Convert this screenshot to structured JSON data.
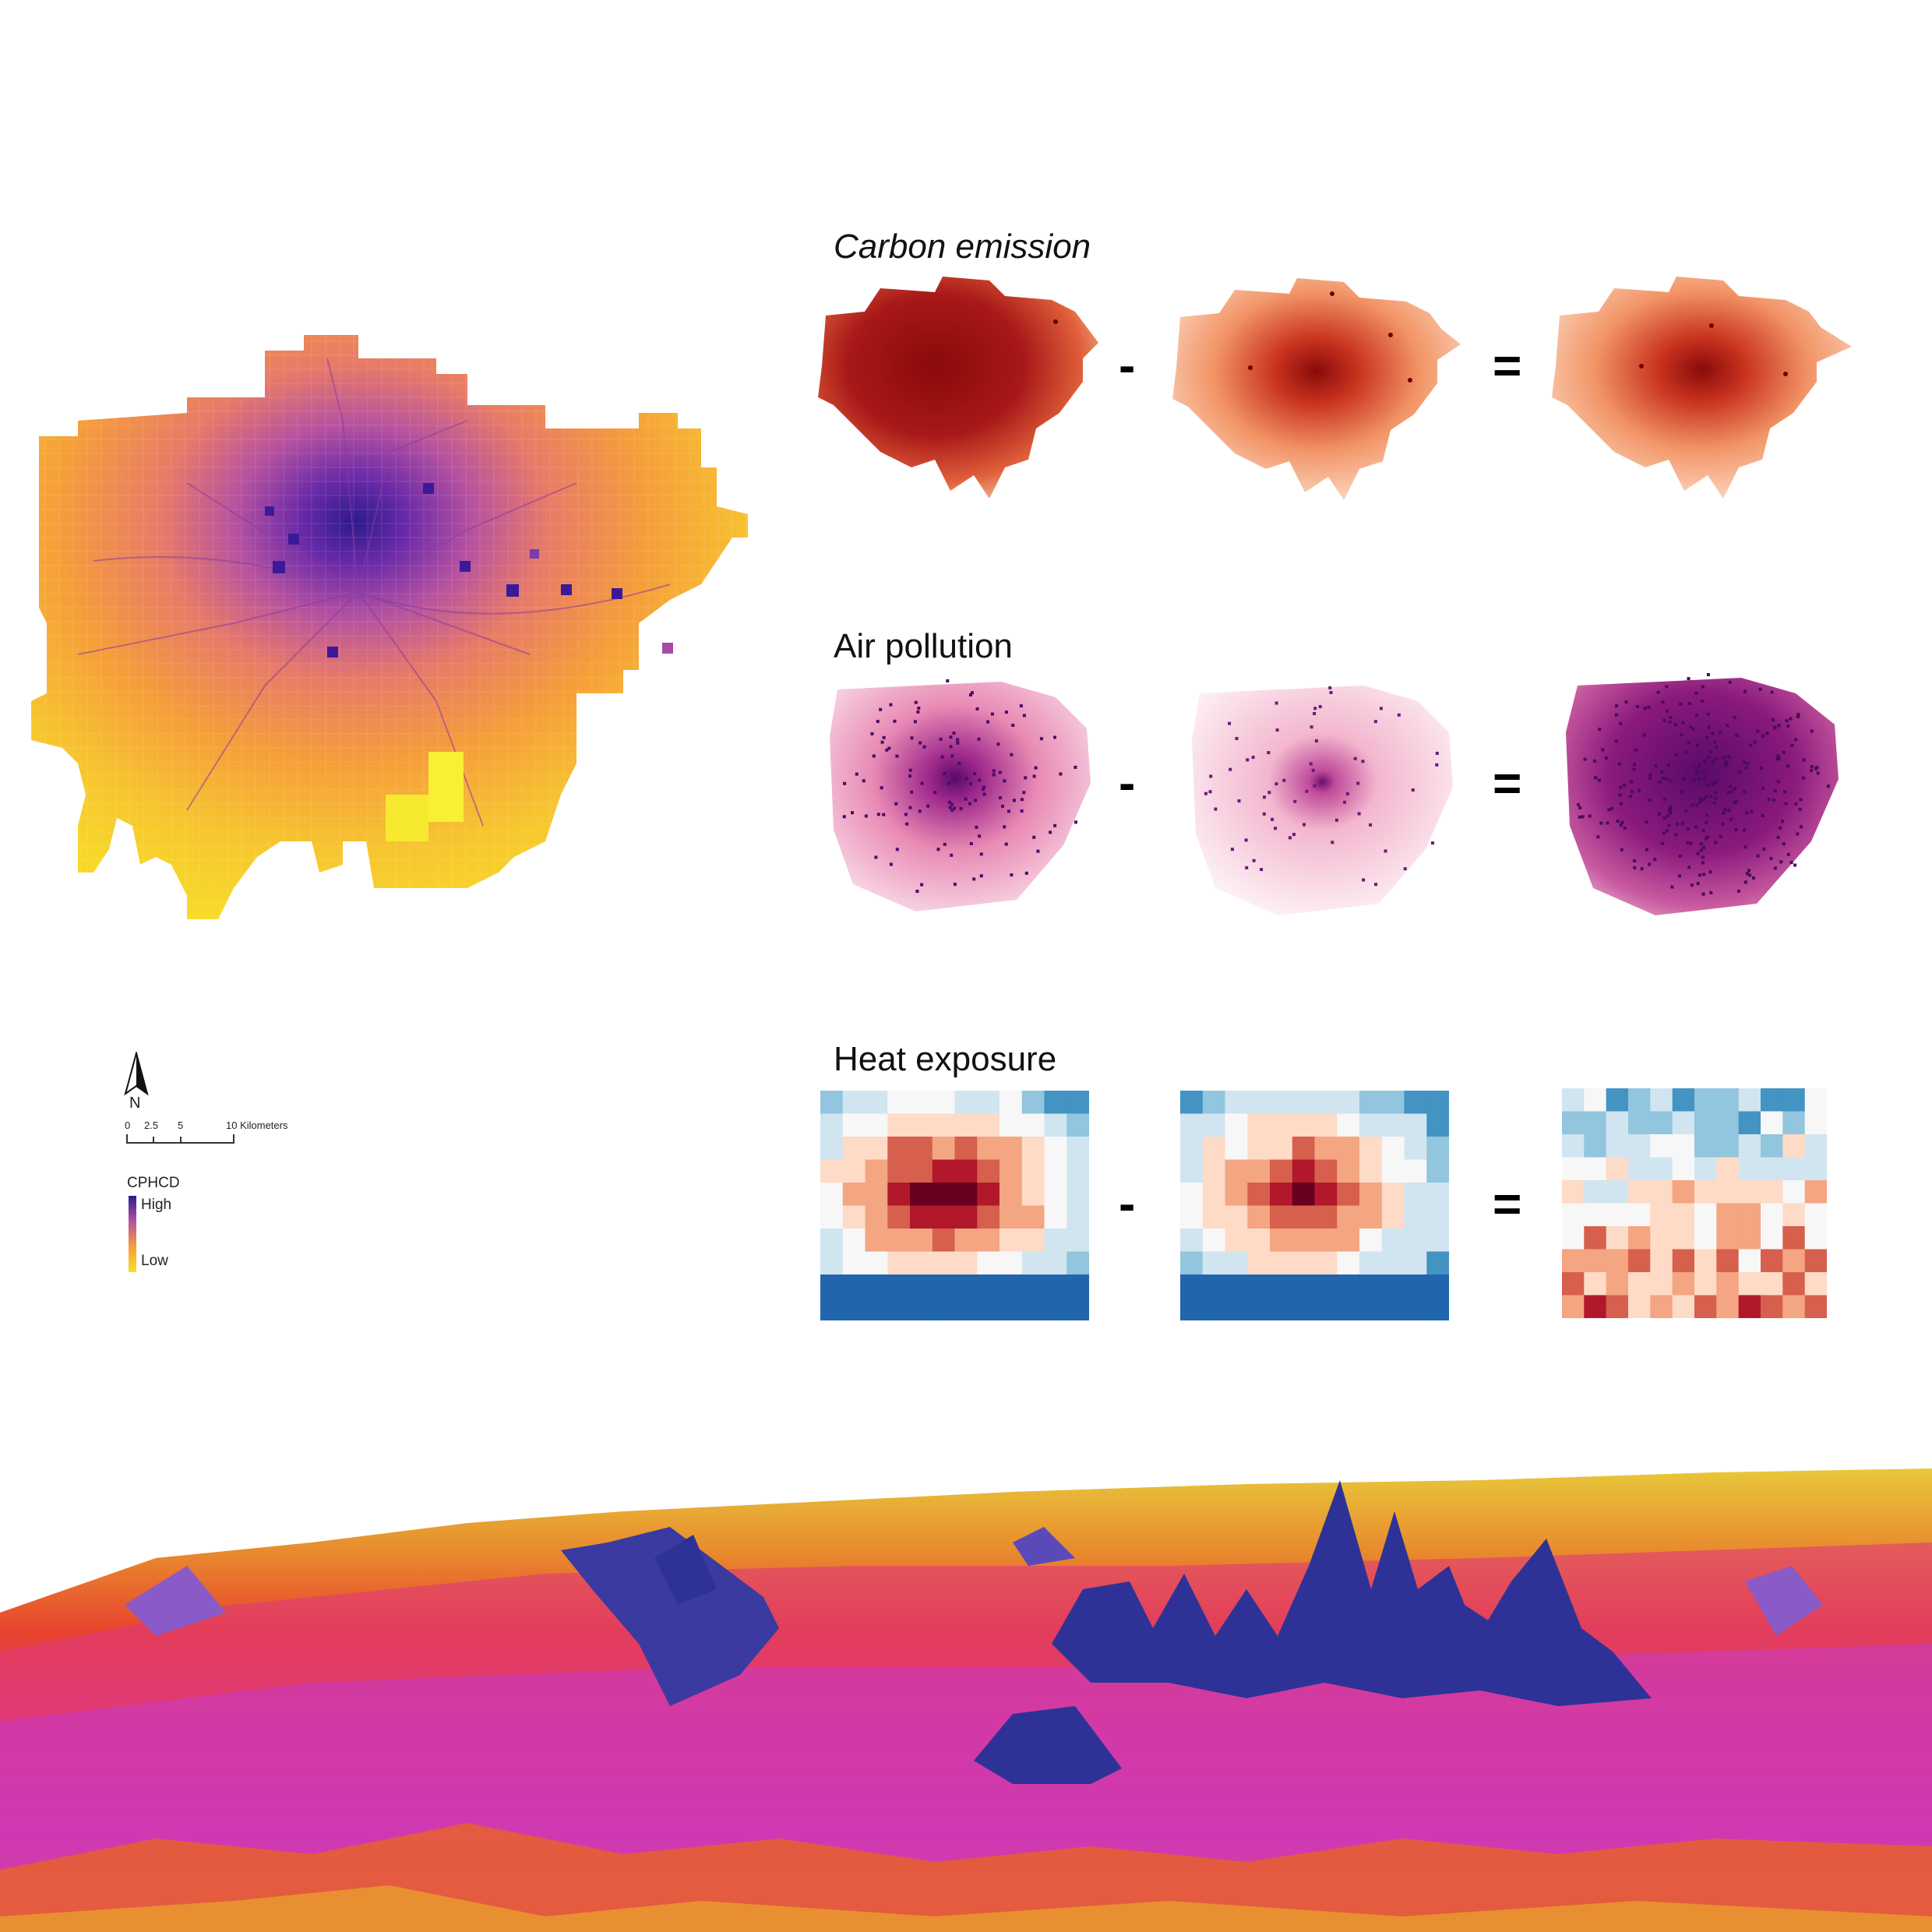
{
  "sections": {
    "carbon": {
      "title": "Carbon emission",
      "minus": "-",
      "equals": "="
    },
    "air": {
      "title": "Air pollution",
      "minus": "-",
      "equals": "="
    },
    "heat": {
      "title": "Heat exposure",
      "minus": "-",
      "equals": "="
    }
  },
  "map": {
    "north": "N",
    "scalebar": {
      "ticks": [
        "0",
        "2.5",
        "5",
        "10 Kilometers"
      ]
    },
    "legend": {
      "title": "CPHCD",
      "high": "High",
      "low": "Low"
    }
  },
  "colors": {
    "high": "#2d1a8c",
    "mid": "#e85a7a",
    "low": "#f7e225",
    "carbon": "#a50f15",
    "air": "#6a0f6a",
    "heat_warm": "#b2182b",
    "heat_cool": "#2166ac"
  }
}
